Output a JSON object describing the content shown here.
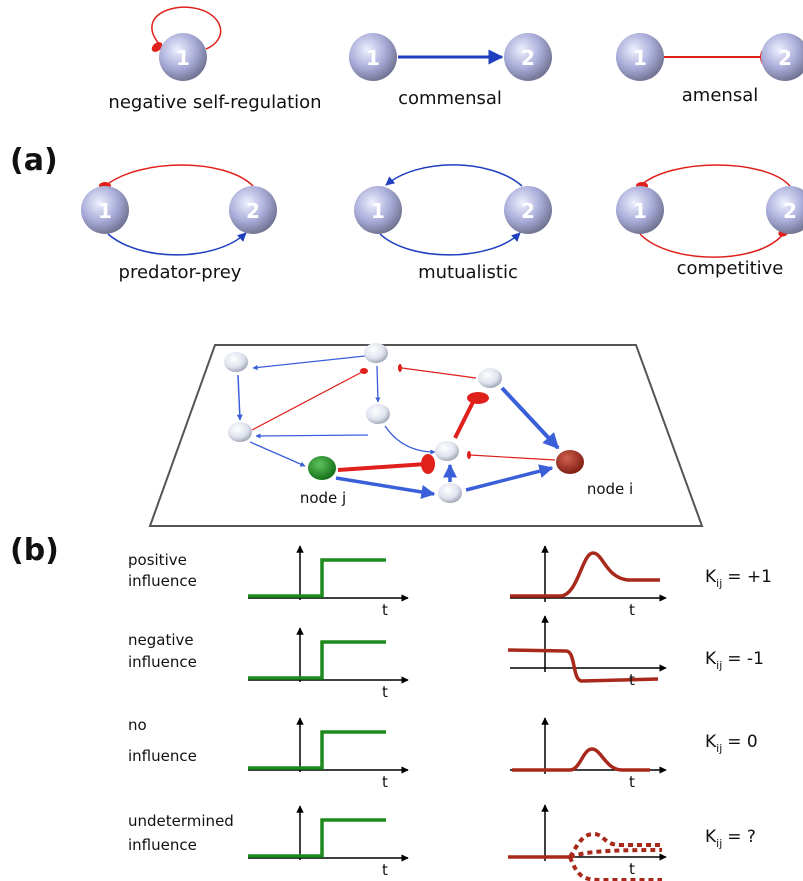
{
  "panel_a": {
    "label": "(a)",
    "motifs": [
      {
        "name": "negative self-regulation",
        "nodes": [
          "1"
        ]
      },
      {
        "name": "commensal",
        "nodes": [
          "1",
          "2"
        ]
      },
      {
        "name": "amensal",
        "nodes": [
          "1",
          "2"
        ]
      },
      {
        "name": "predator-prey",
        "nodes": [
          "1",
          "2"
        ]
      },
      {
        "name": "mutualistic",
        "nodes": [
          "1",
          "2"
        ]
      },
      {
        "name": "competitive",
        "nodes": [
          "1",
          "2"
        ]
      }
    ]
  },
  "panel_b": {
    "label": "(b)",
    "network": {
      "node_labels": [
        "node j",
        "node i"
      ]
    },
    "rows": [
      {
        "label": [
          "positive",
          "influence"
        ],
        "input_axis_label": "t",
        "output_axis_label": "t",
        "k": {
          "symbol": "K",
          "subscript": "ij",
          "value": "= +1"
        }
      },
      {
        "label": [
          "negative",
          "influence"
        ],
        "input_axis_label": "t",
        "output_axis_label": "t",
        "k": {
          "symbol": "K",
          "subscript": "ij",
          "value": "= -1"
        }
      },
      {
        "label": [
          "no",
          "influence"
        ],
        "input_axis_label": "t",
        "output_axis_label": "t",
        "k": {
          "symbol": "K",
          "subscript": "ij",
          "value": "= 0"
        }
      },
      {
        "label": [
          "undetermined",
          "influence"
        ],
        "input_axis_label": "t",
        "output_axis_label": "t",
        "k": {
          "symbol": "K",
          "subscript": "ij",
          "value": "= ?"
        }
      }
    ]
  }
}
